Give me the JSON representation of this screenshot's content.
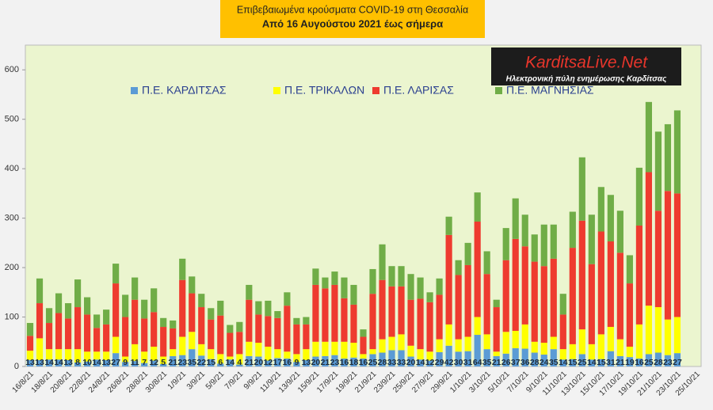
{
  "chart_data": {
    "type": "stacked_bar",
    "title": "Επιβεβαιωμένα κρούσματα COVID-19 στη Θεσσαλία",
    "subtitle": "Από 16 Αυγούστου 2021 έως σήμερα",
    "annotations": [
      "KarditsaLive.Net",
      "Ηλεκτρονική πύλη ενημέρωσης Καρδίτσας"
    ],
    "categories": [
      "16/8/21",
      null,
      "18/8/21",
      null,
      "20/8/21",
      null,
      "22/8/21",
      null,
      "24/8/21",
      null,
      "26/8/21",
      null,
      "28/8/21",
      null,
      "30/8/21",
      null,
      "1/9/21",
      null,
      "3/9/21",
      null,
      "5/9/21",
      null,
      "7/9/21",
      null,
      "9/9/21",
      null,
      "11/9/21",
      null,
      "13/9/21",
      null,
      "15/9/21",
      null,
      "17/9/21",
      null,
      "19/9/21",
      null,
      "21/9/21",
      null,
      "23/9/21",
      null,
      "25/9/21",
      null,
      "27/9/21",
      null,
      "29/9/21",
      null,
      "1/10/21",
      null,
      "3/10/21",
      null,
      "5/10/21",
      null,
      "7/10/21",
      null,
      "9/10/21",
      null,
      "11/10/21",
      null,
      "13/10/21",
      null,
      "15/10/21",
      null,
      "17/10/21",
      null,
      "19/10/21",
      null,
      "21/10/21",
      null,
      "23/10/21",
      null,
      "25/10/21"
    ],
    "series": [
      {
        "name": "Π.Ε. ΚΑΡΔΙΤΣΑΣ",
        "color": "#5b9bd5",
        "data_labels": true,
        "values": [
          13,
          13,
          14,
          14,
          13,
          8,
          10,
          14,
          13,
          27,
          9,
          11,
          7,
          12,
          5,
          21,
          23,
          35,
          22,
          15,
          6,
          14,
          4,
          21,
          20,
          12,
          17,
          16,
          9,
          13,
          20,
          21,
          23,
          16,
          18,
          16,
          25,
          28,
          33,
          33,
          20,
          14,
          12,
          29,
          42,
          30,
          31,
          64,
          35,
          21,
          26,
          37,
          36,
          28,
          24,
          35,
          14,
          15,
          25,
          14,
          15,
          31,
          21,
          19,
          16,
          25,
          28,
          23,
          27,
          null,
          null
        ]
      },
      {
        "name": "Π.Ε. ΤΡΙΚΑΛΩΝ",
        "color": "#ffff00",
        "values": [
          19,
          44,
          21,
          21,
          22,
          27,
          20,
          16,
          17,
          33,
          11,
          34,
          23,
          28,
          15,
          14,
          37,
          35,
          23,
          20,
          19,
          6,
          21,
          29,
          28,
          28,
          18,
          14,
          16,
          22,
          30,
          29,
          27,
          34,
          30,
          9,
          10,
          27,
          27,
          32,
          22,
          21,
          18,
          26,
          43,
          25,
          29,
          36,
          30,
          9,
          44,
          35,
          49,
          22,
          24,
          25,
          21,
          30,
          50,
          31,
          50,
          49,
          34,
          21,
          69,
          98,
          92,
          72,
          73,
          null,
          null
        ]
      },
      {
        "name": "Π.Ε. ΛΑΡΙΣΑΣ",
        "color": "#ee3b2f",
        "values": [
          30,
          71,
          53,
          73,
          62,
          85,
          75,
          48,
          55,
          108,
          80,
          90,
          67,
          70,
          60,
          42,
          115,
          78,
          75,
          60,
          78,
          48,
          45,
          85,
          57,
          62,
          63,
          93,
          60,
          50,
          115,
          108,
          115,
          88,
          77,
          35,
          112,
          120,
          102,
          97,
          93,
          102,
          100,
          90,
          181,
          130,
          145,
          193,
          122,
          90,
          145,
          186,
          158,
          162,
          155,
          158,
          70,
          195,
          220,
          162,
          208,
          173,
          175,
          128,
          200,
          270,
          195,
          260,
          250,
          null,
          null
        ]
      },
      {
        "name": "Π.Ε. ΜΑΓΝΗΣΙΑΣ",
        "color": "#70ad47",
        "values": [
          26,
          50,
          30,
          40,
          31,
          56,
          35,
          27,
          30,
          40,
          45,
          45,
          38,
          48,
          18,
          16,
          43,
          34,
          27,
          23,
          30,
          16,
          20,
          30,
          27,
          31,
          14,
          27,
          13,
          15,
          33,
          22,
          27,
          42,
          40,
          15,
          50,
          72,
          41,
          41,
          52,
          43,
          20,
          33,
          37,
          30,
          45,
          59,
          46,
          15,
          65,
          82,
          64,
          55,
          84,
          69,
          42,
          73,
          128,
          100,
          90,
          94,
          85,
          57,
          117,
          142,
          160,
          135,
          168,
          null,
          null
        ]
      }
    ],
    "ylim": [
      0,
      650
    ],
    "yticks": [
      0,
      100,
      200,
      300,
      400,
      500,
      600
    ],
    "grid": false,
    "legend": "top"
  }
}
